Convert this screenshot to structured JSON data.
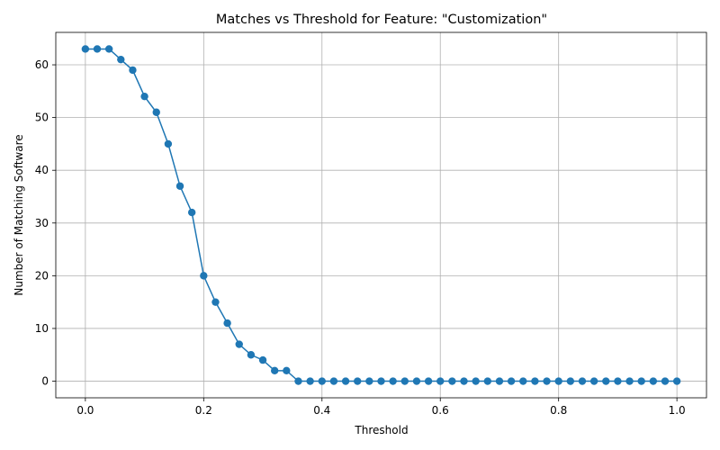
{
  "chart_data": {
    "type": "line",
    "title": "Matches vs Threshold for Feature: \"Customization\"",
    "xlabel": "Threshold",
    "ylabel": "Number of Matching Software",
    "xlim": [
      -0.05,
      1.05
    ],
    "ylim": [
      -3.15,
      66.15
    ],
    "xticks": [
      0.0,
      0.2,
      0.4,
      0.6,
      0.8,
      1.0
    ],
    "xtick_labels": [
      "0.0",
      "0.2",
      "0.4",
      "0.6",
      "0.8",
      "1.0"
    ],
    "yticks": [
      0,
      10,
      20,
      30,
      40,
      50,
      60
    ],
    "ytick_labels": [
      "0",
      "10",
      "20",
      "30",
      "40",
      "50",
      "60"
    ],
    "grid": true,
    "marker": "circle",
    "color": "#1f77b4",
    "series": [
      {
        "x": [
          0.0,
          0.02,
          0.04,
          0.06,
          0.08,
          0.1,
          0.12,
          0.14,
          0.16,
          0.18,
          0.2,
          0.22,
          0.24,
          0.26,
          0.28,
          0.3,
          0.32,
          0.34,
          0.36,
          0.38,
          0.4,
          0.42,
          0.44,
          0.46,
          0.48,
          0.5,
          0.52,
          0.54,
          0.56,
          0.58,
          0.6,
          0.62,
          0.64,
          0.66,
          0.68,
          0.7,
          0.72,
          0.74,
          0.76,
          0.78,
          0.8,
          0.82,
          0.84,
          0.86,
          0.88,
          0.9,
          0.92,
          0.94,
          0.96,
          0.98,
          1.0
        ],
        "values": [
          63,
          63,
          63,
          61,
          59,
          54,
          51,
          45,
          37,
          32,
          20,
          15,
          11,
          7,
          5,
          4,
          2,
          2,
          0,
          0,
          0,
          0,
          0,
          0,
          0,
          0,
          0,
          0,
          0,
          0,
          0,
          0,
          0,
          0,
          0,
          0,
          0,
          0,
          0,
          0,
          0,
          0,
          0,
          0,
          0,
          0,
          0,
          0,
          0,
          0,
          0
        ]
      }
    ]
  }
}
